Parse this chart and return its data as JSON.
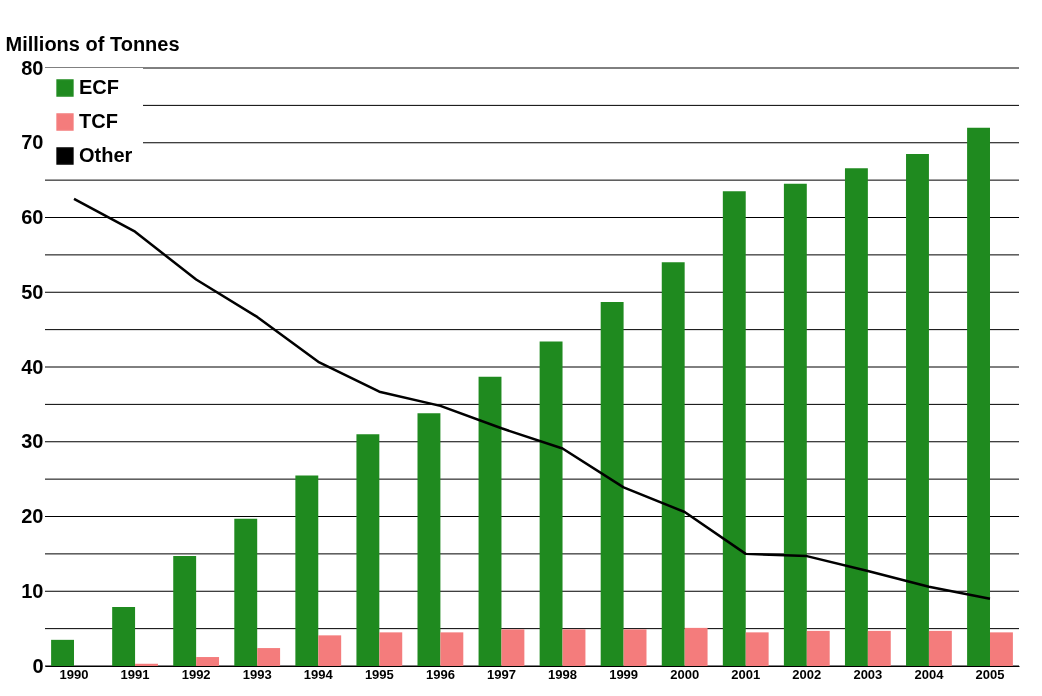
{
  "chart_data": {
    "type": "bar",
    "ylabel": "Millions of Tonnes",
    "categories": [
      "1990",
      "1991",
      "1992",
      "1993",
      "1994",
      "1995",
      "1996",
      "1997",
      "1998",
      "1999",
      "2000",
      "2001",
      "2002",
      "2003",
      "2004",
      "2005"
    ],
    "series": [
      {
        "name": "ECF",
        "color": "#1f8a1f",
        "values": [
          3.5,
          7.9,
          14.7,
          19.7,
          25.5,
          31,
          33.8,
          38.7,
          43.4,
          48.7,
          54,
          63.5,
          64.5,
          66.6,
          68.5,
          72
        ]
      },
      {
        "name": "TCF",
        "color": "#f47c7c",
        "values": [
          0,
          0.3,
          1.2,
          2.4,
          4.1,
          4.5,
          4.5,
          4.9,
          4.9,
          4.9,
          5.1,
          4.5,
          4.7,
          4.7,
          4.7,
          4.5
        ]
      },
      {
        "name": "Other",
        "type": "line",
        "color": "#000000",
        "values": [
          62.5,
          58.1,
          51.7,
          46.7,
          40.7,
          36.7,
          34.8,
          31.8,
          29.1,
          23.9,
          20.6,
          15,
          14.7,
          12.7,
          10.6,
          9
        ]
      }
    ],
    "ylim": [
      0,
      80
    ],
    "yticks": [
      0,
      {
        "value": 5,
        "label": null
      },
      10,
      {
        "value": 15,
        "label": null
      },
      20,
      {
        "value": 25,
        "label": null
      },
      30,
      {
        "value": 35,
        "label": null
      },
      40,
      {
        "value": 45,
        "label": null
      },
      50,
      {
        "value": 55,
        "label": null
      },
      60,
      {
        "value": 65,
        "label": null
      },
      70,
      {
        "value": 75,
        "label": null
      },
      80
    ],
    "grid": "y",
    "legend": "top left"
  }
}
